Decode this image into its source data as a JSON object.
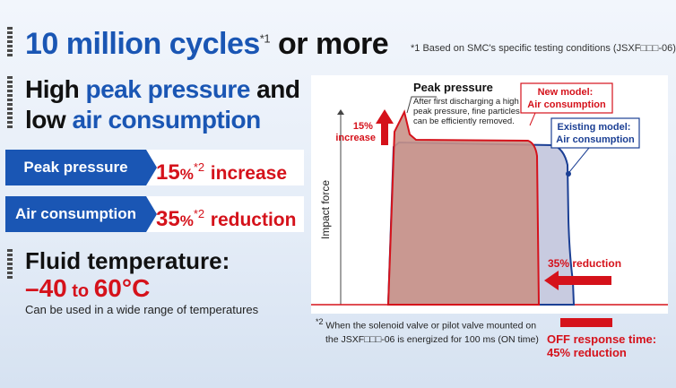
{
  "header": {
    "title": "10 million cycles",
    "title_sup": "*1",
    "title_tail": "or more",
    "footnote1": "*1  Based on SMC's specific testing conditions (JSXF□□□-06)"
  },
  "feature": {
    "line1_a": "High ",
    "line1_b": "peak pressure",
    "line1_c": " and",
    "line2_a": "low ",
    "line2_b": "air consumption"
  },
  "stats": [
    {
      "label": "Peak pressure",
      "value": "15",
      "unit": "%",
      "sup": "*2",
      "word": "increase"
    },
    {
      "label": "Air consumption",
      "value": "35",
      "unit": "%",
      "sup": "*2",
      "word": "reduction"
    }
  ],
  "fluid": {
    "title": "Fluid temperature:",
    "min": "–40",
    "to": " to ",
    "max": "60",
    "unit": "°C",
    "desc": "Can be used in a wide range of temperatures"
  },
  "chart": {
    "ylabel": "Impact force",
    "peak_title": "Peak pressure",
    "peak_desc": [
      "After first discharging a high",
      "peak pressure, fine particles",
      "can be efficiently removed."
    ],
    "increase_label": [
      "15%",
      "increase"
    ],
    "new_model": [
      "New model:",
      "Air consumption"
    ],
    "existing_model": [
      "Existing model:",
      "Air consumption"
    ],
    "reduction_label": "35% reduction",
    "colors": {
      "new_fill": "#c99288",
      "existing_fill": "#c8cbe0",
      "red": "#d5121b",
      "blue": "#1b3f94"
    }
  },
  "chart_data": {
    "type": "area",
    "ylabel": "Impact force",
    "series": [
      {
        "name": "New model: Air consumption",
        "peak_increase_pct": 15,
        "air_consumption_reduction_pct": 35
      },
      {
        "name": "Existing model: Air consumption"
      }
    ]
  },
  "notes": {
    "note2_sup": "*2",
    "note2_line1": " When the solenoid valve or pilot valve mounted on",
    "note2_line2": "the JSXF□□□-06 is energized for 100 ms (ON time)",
    "off_line1": "OFF response time:",
    "off_line2": "45% reduction"
  }
}
